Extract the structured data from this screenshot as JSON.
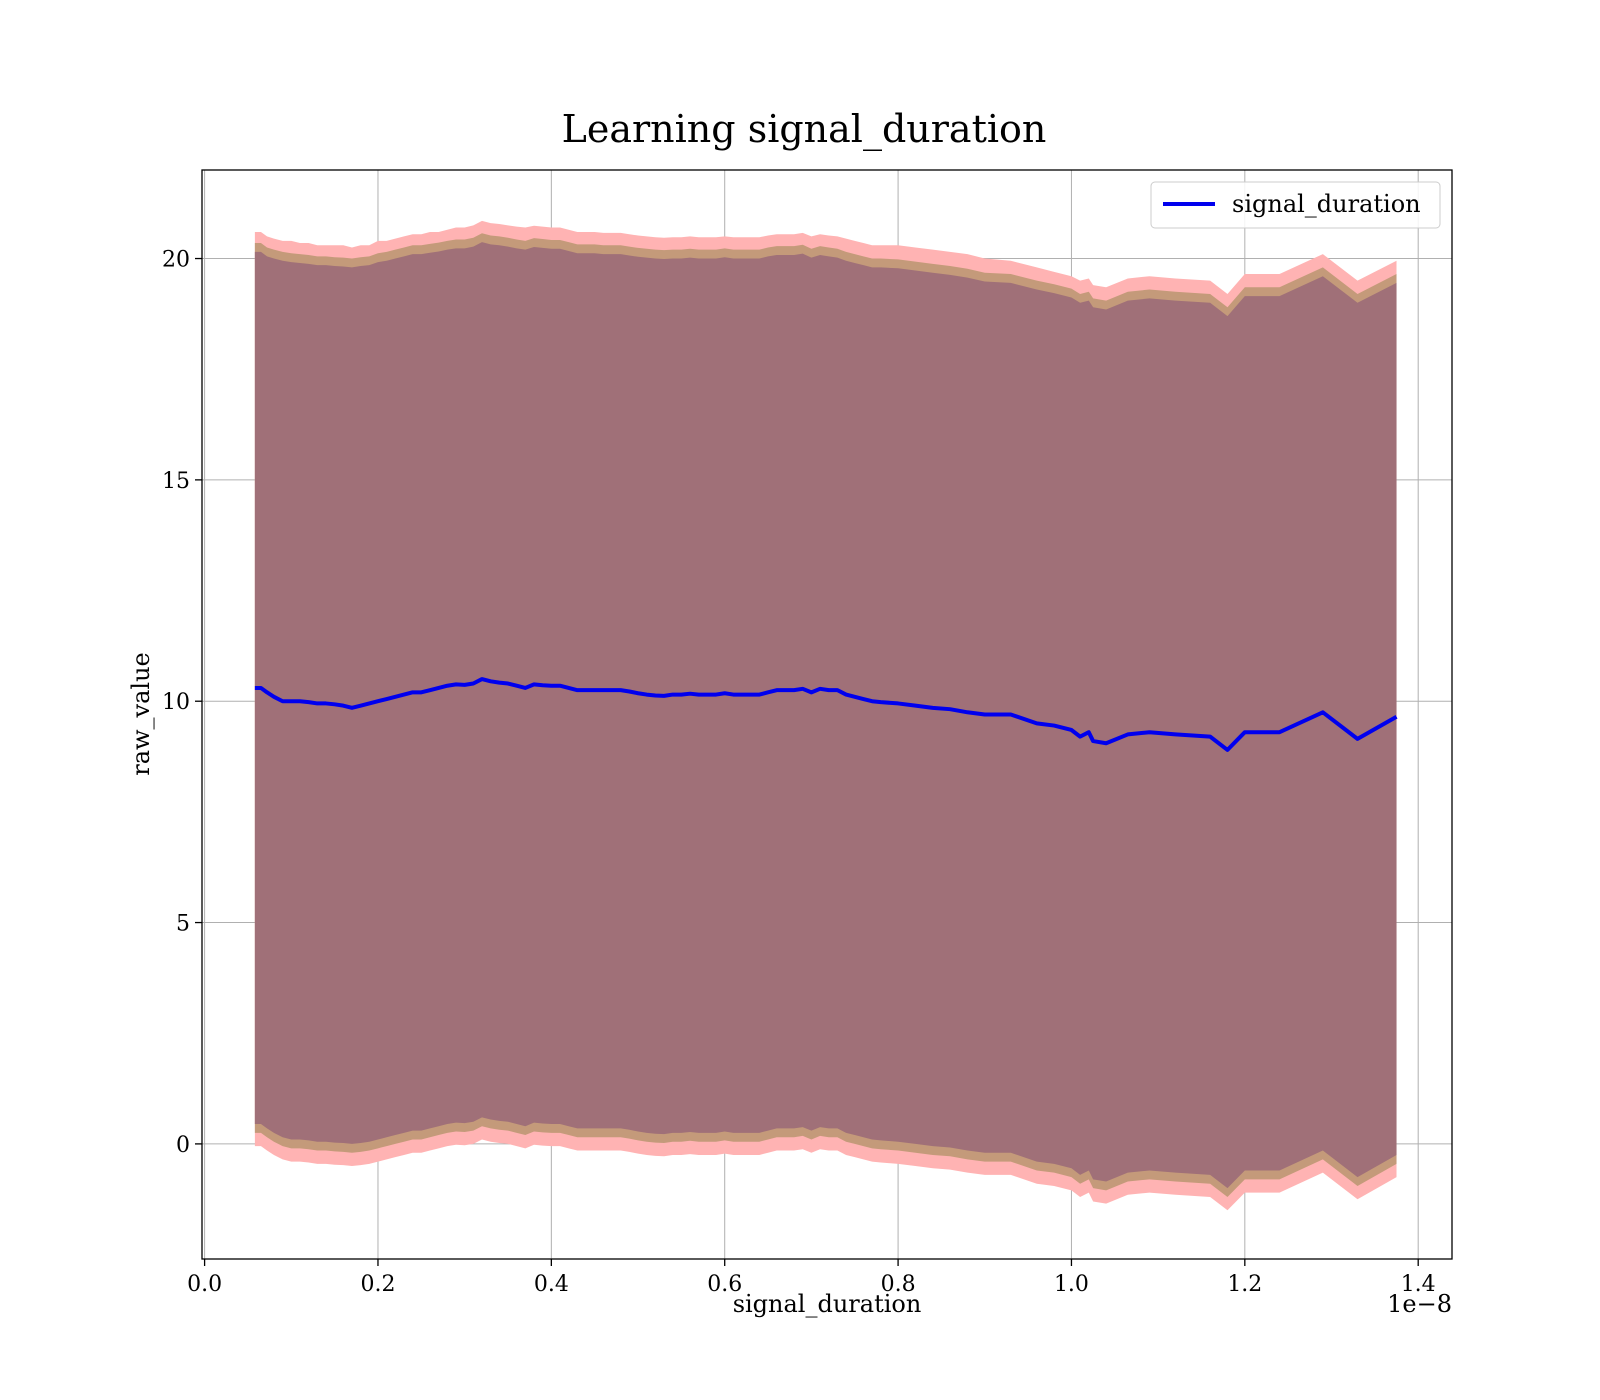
{
  "chart_data": {
    "type": "line",
    "title": "Learning signal_duration",
    "xlabel": "signal_duration",
    "ylabel": "raw_value",
    "x_offset_label": "1e−8",
    "xlim": [
      -0.003,
      1.439
    ],
    "ylim": [
      -2.6,
      22.0
    ],
    "x_ticks": [
      0.0,
      0.2,
      0.4,
      0.6,
      0.8,
      1.0,
      1.2,
      1.4
    ],
    "x_tick_labels": [
      "0.0",
      "0.2",
      "0.4",
      "0.6",
      "0.8",
      "1.0",
      "1.2",
      "1.4"
    ],
    "y_ticks": [
      0,
      5,
      10,
      15,
      20
    ],
    "y_tick_labels": [
      "0",
      "5",
      "10",
      "15",
      "20"
    ],
    "grid": true,
    "legend": {
      "position": "top-right",
      "entries": [
        "signal_duration"
      ]
    },
    "colors": {
      "line": "#0000ee",
      "outer_band": "#ffb3b3",
      "middle_band": "#c49a7a",
      "inner_band": "#a07078",
      "grid": "#b0b0b0"
    },
    "series": [
      {
        "name": "signal_duration",
        "x": [
          0.058,
          0.065,
          0.072,
          0.08,
          0.09,
          0.1,
          0.11,
          0.12,
          0.13,
          0.14,
          0.15,
          0.16,
          0.17,
          0.18,
          0.19,
          0.2,
          0.21,
          0.22,
          0.23,
          0.24,
          0.25,
          0.26,
          0.27,
          0.28,
          0.29,
          0.3,
          0.31,
          0.32,
          0.33,
          0.34,
          0.35,
          0.36,
          0.37,
          0.38,
          0.39,
          0.4,
          0.41,
          0.42,
          0.43,
          0.44,
          0.45,
          0.46,
          0.47,
          0.48,
          0.49,
          0.5,
          0.51,
          0.52,
          0.53,
          0.54,
          0.55,
          0.56,
          0.57,
          0.58,
          0.59,
          0.6,
          0.61,
          0.62,
          0.63,
          0.64,
          0.65,
          0.66,
          0.67,
          0.68,
          0.69,
          0.7,
          0.71,
          0.72,
          0.73,
          0.74,
          0.75,
          0.76,
          0.77,
          0.78,
          0.8,
          0.82,
          0.84,
          0.86,
          0.88,
          0.9,
          0.93,
          0.96,
          0.98,
          1.0,
          1.01,
          1.02,
          1.025,
          1.04,
          1.065,
          1.09,
          1.12,
          1.16,
          1.18,
          1.2,
          1.24,
          1.29,
          1.33,
          1.375
        ],
        "mean": [
          10.3,
          10.3,
          10.2,
          10.1,
          10.0,
          10.0,
          10.0,
          9.98,
          9.95,
          9.95,
          9.93,
          9.9,
          9.85,
          9.9,
          9.95,
          10.0,
          10.05,
          10.1,
          10.15,
          10.2,
          10.2,
          10.25,
          10.3,
          10.35,
          10.38,
          10.37,
          10.4,
          10.5,
          10.45,
          10.42,
          10.4,
          10.35,
          10.3,
          10.38,
          10.36,
          10.35,
          10.35,
          10.3,
          10.25,
          10.25,
          10.25,
          10.25,
          10.25,
          10.25,
          10.22,
          10.18,
          10.15,
          10.13,
          10.12,
          10.15,
          10.15,
          10.17,
          10.15,
          10.15,
          10.15,
          10.18,
          10.15,
          10.15,
          10.15,
          10.15,
          10.2,
          10.25,
          10.25,
          10.25,
          10.28,
          10.2,
          10.28,
          10.25,
          10.25,
          10.15,
          10.1,
          10.05,
          10.0,
          9.98,
          9.95,
          9.9,
          9.85,
          9.82,
          9.75,
          9.7,
          9.7,
          9.5,
          9.45,
          9.35,
          9.2,
          9.3,
          9.1,
          9.05,
          9.25,
          9.3,
          9.25,
          9.2,
          8.9,
          9.3,
          9.3,
          9.75,
          9.15,
          9.65
        ],
        "upper_outer": [
          20.6,
          20.6,
          20.5,
          20.45,
          20.4,
          20.4,
          20.35,
          20.35,
          20.3,
          20.3,
          20.3,
          20.3,
          20.25,
          20.3,
          20.3,
          20.4,
          20.4,
          20.45,
          20.5,
          20.55,
          20.55,
          20.6,
          20.6,
          20.65,
          20.7,
          20.7,
          20.75,
          20.85,
          20.8,
          20.78,
          20.75,
          20.72,
          20.7,
          20.74,
          20.72,
          20.7,
          20.7,
          20.65,
          20.6,
          20.6,
          20.6,
          20.58,
          20.58,
          20.58,
          20.55,
          20.52,
          20.5,
          20.48,
          20.47,
          20.48,
          20.48,
          20.5,
          20.48,
          20.48,
          20.48,
          20.5,
          20.48,
          20.48,
          20.48,
          20.48,
          20.52,
          20.55,
          20.55,
          20.55,
          20.58,
          20.5,
          20.55,
          20.52,
          20.5,
          20.45,
          20.4,
          20.35,
          20.3,
          20.3,
          20.3,
          20.25,
          20.2,
          20.15,
          20.1,
          20.0,
          19.95,
          19.8,
          19.7,
          19.6,
          19.5,
          19.55,
          19.4,
          19.35,
          19.55,
          19.6,
          19.55,
          19.5,
          19.2,
          19.65,
          19.65,
          20.1,
          19.5,
          19.95
        ],
        "upper_middle": [
          20.35,
          20.35,
          20.25,
          20.2,
          20.15,
          20.12,
          20.1,
          20.08,
          20.05,
          20.05,
          20.03,
          20.02,
          20.0,
          20.03,
          20.05,
          20.12,
          20.15,
          20.2,
          20.25,
          20.3,
          20.3,
          20.33,
          20.36,
          20.4,
          20.43,
          20.43,
          20.47,
          20.57,
          20.52,
          20.5,
          20.47,
          20.43,
          20.4,
          20.46,
          20.44,
          20.42,
          20.42,
          20.37,
          20.32,
          20.32,
          20.32,
          20.3,
          20.3,
          20.3,
          20.27,
          20.24,
          20.22,
          20.2,
          20.19,
          20.2,
          20.2,
          20.22,
          20.2,
          20.2,
          20.2,
          20.23,
          20.2,
          20.2,
          20.2,
          20.2,
          20.25,
          20.28,
          20.28,
          20.28,
          20.31,
          20.22,
          20.28,
          20.25,
          20.22,
          20.15,
          20.1,
          20.05,
          20.0,
          20.0,
          19.98,
          19.93,
          19.88,
          19.83,
          19.77,
          19.68,
          19.65,
          19.5,
          19.42,
          19.32,
          19.2,
          19.25,
          19.1,
          19.05,
          19.25,
          19.3,
          19.25,
          19.2,
          18.9,
          19.35,
          19.35,
          19.8,
          19.2,
          19.65
        ],
        "upper_inner": [
          20.15,
          20.15,
          20.05,
          20.0,
          19.95,
          19.92,
          19.9,
          19.88,
          19.85,
          19.85,
          19.83,
          19.82,
          19.8,
          19.83,
          19.85,
          19.92,
          19.95,
          20.0,
          20.05,
          20.1,
          20.1,
          20.13,
          20.16,
          20.2,
          20.23,
          20.23,
          20.27,
          20.37,
          20.32,
          20.3,
          20.27,
          20.23,
          20.2,
          20.26,
          20.24,
          20.22,
          20.22,
          20.17,
          20.12,
          20.12,
          20.12,
          20.1,
          20.1,
          20.1,
          20.07,
          20.04,
          20.02,
          20.0,
          19.99,
          20.0,
          20.0,
          20.02,
          20.0,
          20.0,
          20.0,
          20.03,
          20.0,
          20.0,
          20.0,
          20.0,
          20.05,
          20.08,
          20.08,
          20.08,
          20.11,
          20.02,
          20.08,
          20.05,
          20.02,
          19.95,
          19.9,
          19.85,
          19.8,
          19.8,
          19.78,
          19.73,
          19.68,
          19.63,
          19.57,
          19.48,
          19.45,
          19.3,
          19.22,
          19.12,
          19.0,
          19.05,
          18.9,
          18.85,
          19.05,
          19.1,
          19.05,
          19.0,
          18.7,
          19.15,
          19.15,
          19.6,
          19.0,
          19.45
        ],
        "lower_inner": [
          0.45,
          0.45,
          0.35,
          0.25,
          0.15,
          0.1,
          0.1,
          0.08,
          0.05,
          0.05,
          0.03,
          0.02,
          0.0,
          0.02,
          0.05,
          0.1,
          0.15,
          0.2,
          0.25,
          0.3,
          0.3,
          0.35,
          0.4,
          0.45,
          0.48,
          0.47,
          0.5,
          0.6,
          0.55,
          0.52,
          0.5,
          0.45,
          0.4,
          0.48,
          0.46,
          0.45,
          0.45,
          0.4,
          0.35,
          0.35,
          0.35,
          0.35,
          0.35,
          0.35,
          0.32,
          0.28,
          0.25,
          0.23,
          0.22,
          0.25,
          0.25,
          0.27,
          0.25,
          0.25,
          0.25,
          0.28,
          0.25,
          0.25,
          0.25,
          0.25,
          0.3,
          0.35,
          0.35,
          0.35,
          0.38,
          0.3,
          0.38,
          0.35,
          0.35,
          0.25,
          0.2,
          0.15,
          0.1,
          0.08,
          0.05,
          0.0,
          -0.05,
          -0.08,
          -0.15,
          -0.2,
          -0.2,
          -0.4,
          -0.45,
          -0.55,
          -0.7,
          -0.6,
          -0.8,
          -0.85,
          -0.65,
          -0.6,
          -0.65,
          -0.7,
          -1.0,
          -0.6,
          -0.6,
          -0.15,
          -0.75,
          -0.25
        ],
        "lower_middle": [
          0.25,
          0.25,
          0.15,
          0.05,
          -0.05,
          -0.1,
          -0.1,
          -0.12,
          -0.15,
          -0.15,
          -0.17,
          -0.18,
          -0.2,
          -0.18,
          -0.15,
          -0.1,
          -0.05,
          0.0,
          0.05,
          0.1,
          0.1,
          0.15,
          0.2,
          0.25,
          0.28,
          0.27,
          0.3,
          0.4,
          0.35,
          0.32,
          0.3,
          0.25,
          0.2,
          0.28,
          0.26,
          0.25,
          0.25,
          0.2,
          0.15,
          0.15,
          0.15,
          0.15,
          0.15,
          0.15,
          0.12,
          0.08,
          0.05,
          0.03,
          0.02,
          0.05,
          0.05,
          0.07,
          0.05,
          0.05,
          0.05,
          0.08,
          0.05,
          0.05,
          0.05,
          0.05,
          0.1,
          0.15,
          0.15,
          0.15,
          0.18,
          0.1,
          0.18,
          0.15,
          0.15,
          0.05,
          0.0,
          -0.05,
          -0.1,
          -0.12,
          -0.15,
          -0.2,
          -0.25,
          -0.28,
          -0.35,
          -0.4,
          -0.4,
          -0.6,
          -0.65,
          -0.75,
          -0.9,
          -0.8,
          -1.0,
          -1.05,
          -0.85,
          -0.8,
          -0.85,
          -0.9,
          -1.2,
          -0.8,
          -0.8,
          -0.35,
          -0.95,
          -0.45
        ],
        "lower_outer": [
          -0.05,
          -0.05,
          -0.15,
          -0.25,
          -0.35,
          -0.4,
          -0.4,
          -0.42,
          -0.45,
          -0.45,
          -0.47,
          -0.48,
          -0.5,
          -0.48,
          -0.45,
          -0.4,
          -0.35,
          -0.3,
          -0.25,
          -0.2,
          -0.2,
          -0.15,
          -0.1,
          -0.05,
          -0.02,
          -0.03,
          0.0,
          0.1,
          0.05,
          0.02,
          0.0,
          -0.05,
          -0.1,
          -0.02,
          -0.04,
          -0.05,
          -0.05,
          -0.1,
          -0.15,
          -0.15,
          -0.15,
          -0.15,
          -0.15,
          -0.15,
          -0.18,
          -0.22,
          -0.25,
          -0.27,
          -0.28,
          -0.25,
          -0.25,
          -0.23,
          -0.25,
          -0.25,
          -0.25,
          -0.22,
          -0.25,
          -0.25,
          -0.25,
          -0.25,
          -0.2,
          -0.15,
          -0.15,
          -0.15,
          -0.12,
          -0.2,
          -0.12,
          -0.15,
          -0.15,
          -0.25,
          -0.3,
          -0.35,
          -0.4,
          -0.42,
          -0.45,
          -0.5,
          -0.55,
          -0.58,
          -0.65,
          -0.7,
          -0.7,
          -0.9,
          -0.95,
          -1.05,
          -1.2,
          -1.1,
          -1.3,
          -1.35,
          -1.15,
          -1.1,
          -1.15,
          -1.2,
          -1.5,
          -1.1,
          -1.1,
          -0.65,
          -1.25,
          -0.75
        ]
      }
    ]
  }
}
